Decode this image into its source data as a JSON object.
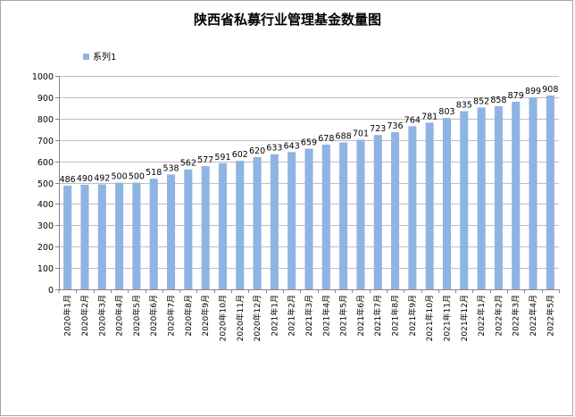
{
  "chart_data": {
    "type": "bar",
    "title": "陕西省私募行业管理基金数量图",
    "xlabel": "",
    "ylabel": "",
    "ylim": [
      0,
      1000
    ],
    "ytick_step": 100,
    "grid": true,
    "legend_position": "top-left",
    "colors": {
      "bar": "#8EB4E3",
      "grid": "#BFBFBF",
      "axis": "#868686",
      "border": "#A6A6A6"
    },
    "categories": [
      "2020年1月",
      "2020年2月",
      "2020年3月",
      "2020年4月",
      "2020年5月",
      "2020年6月",
      "2020年7月",
      "2020年8月",
      "2020年9月",
      "2020年10月",
      "2020年11月",
      "2020年12月",
      "2021年1月",
      "2021年2月",
      "2021年3月",
      "2021年4月",
      "2021年5月",
      "2021年6月",
      "2021年7月",
      "2021年8月",
      "2021年9月",
      "2021年10月",
      "2021年11月",
      "2021年12月",
      "2022年1月",
      "2022年2月",
      "2022年3月",
      "2022年4月",
      "2022年5月"
    ],
    "series": [
      {
        "name": "系列1",
        "values": [
          486,
          490,
          492,
          500,
          500,
          518,
          538,
          562,
          577,
          591,
          602,
          620,
          633,
          643,
          659,
          678,
          688,
          701,
          723,
          736,
          764,
          781,
          803,
          835,
          852,
          858,
          879,
          899,
          908
        ]
      }
    ]
  }
}
